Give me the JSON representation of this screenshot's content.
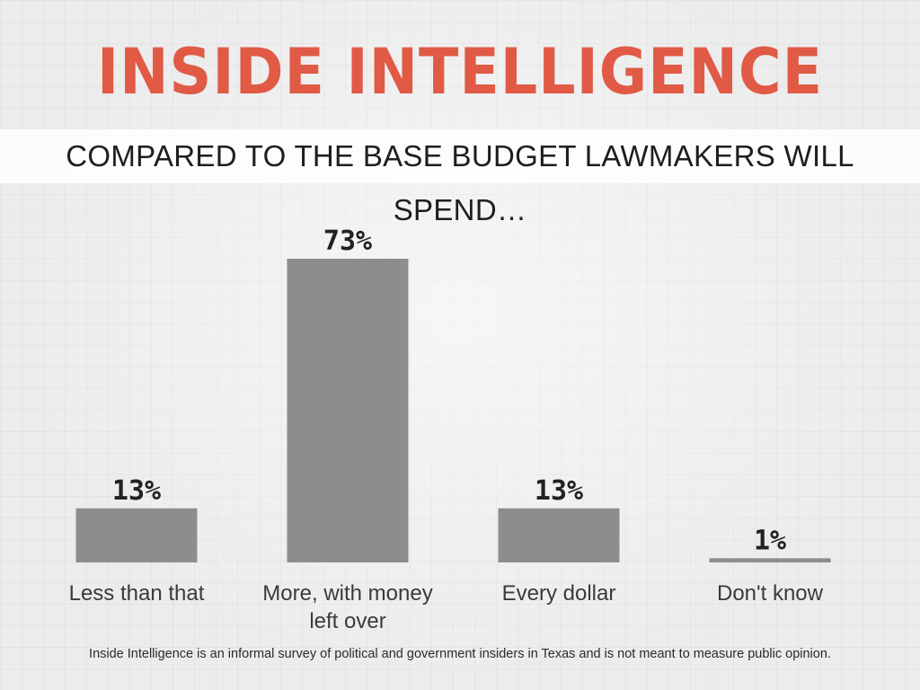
{
  "header": {
    "title": "INSIDE INTELLIGENCE",
    "subtitle": "COMPARED TO THE BASE BUDGET LAWMAKERS WILL SPEND…"
  },
  "footer": {
    "note": "Inside Intelligence is an informal survey of political and government insiders in Texas and is not meant to measure public opinion."
  },
  "colors": {
    "title": "#e05a45",
    "bar": "#8e8c8c",
    "value_label": "#222222",
    "category_label": "#3a3a3a"
  },
  "chart_data": {
    "type": "bar",
    "title": "COMPARED TO THE BASE BUDGET LAWMAKERS WILL SPEND…",
    "categories": [
      [
        "Less than that"
      ],
      [
        "More, with money",
        "left over"
      ],
      [
        "Every dollar"
      ],
      [
        "Don't know"
      ]
    ],
    "values": [
      13,
      73,
      13,
      1
    ],
    "value_labels": [
      "13%",
      "73%",
      "13%",
      "1%"
    ],
    "unit": "%",
    "xlabel": "",
    "ylabel": "",
    "ylim": [
      0,
      73
    ],
    "grid": false,
    "legend": "none"
  }
}
